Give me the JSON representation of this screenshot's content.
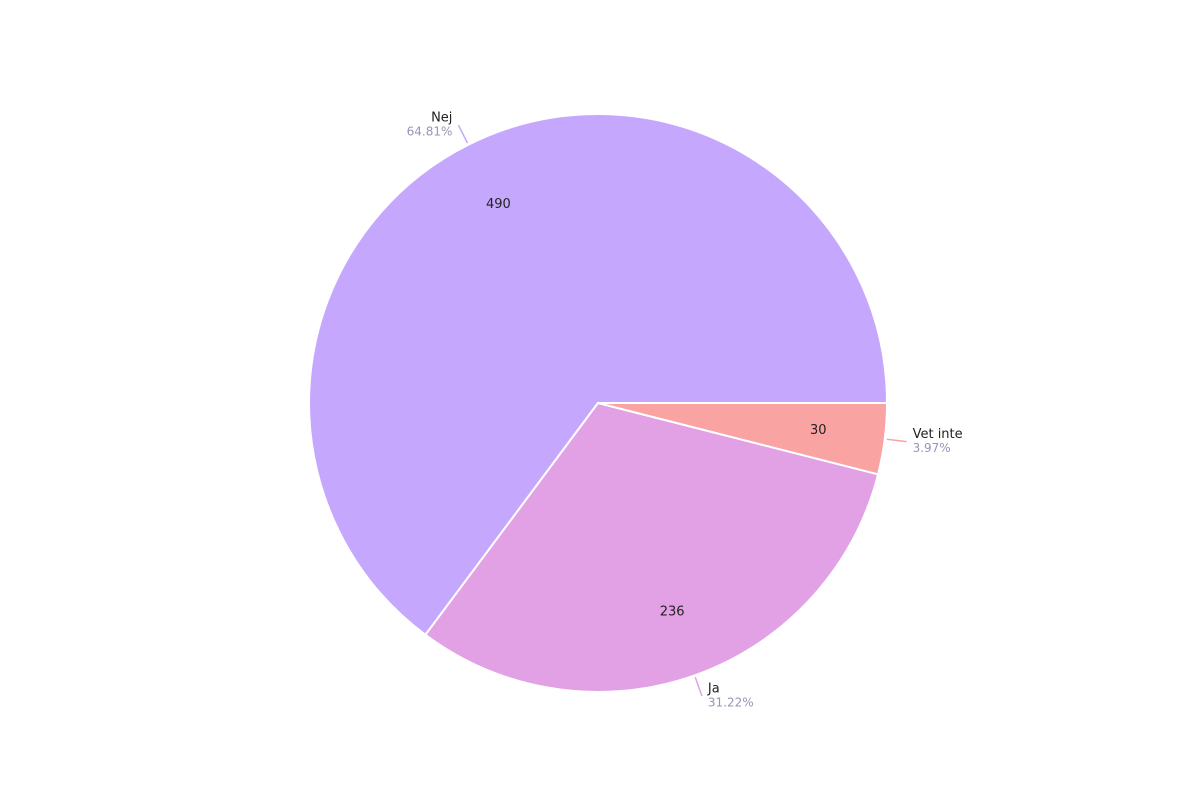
{
  "chart_data": {
    "type": "pie",
    "categories": [
      "Nej",
      "Ja",
      "Vet inte"
    ],
    "values": [
      490,
      236,
      30
    ],
    "percent_labels": [
      "64.81%",
      "31.22%",
      "3.97%"
    ],
    "colors": [
      "#c5a8fd",
      "#e1a1e4",
      "#f9a3a3"
    ]
  }
}
